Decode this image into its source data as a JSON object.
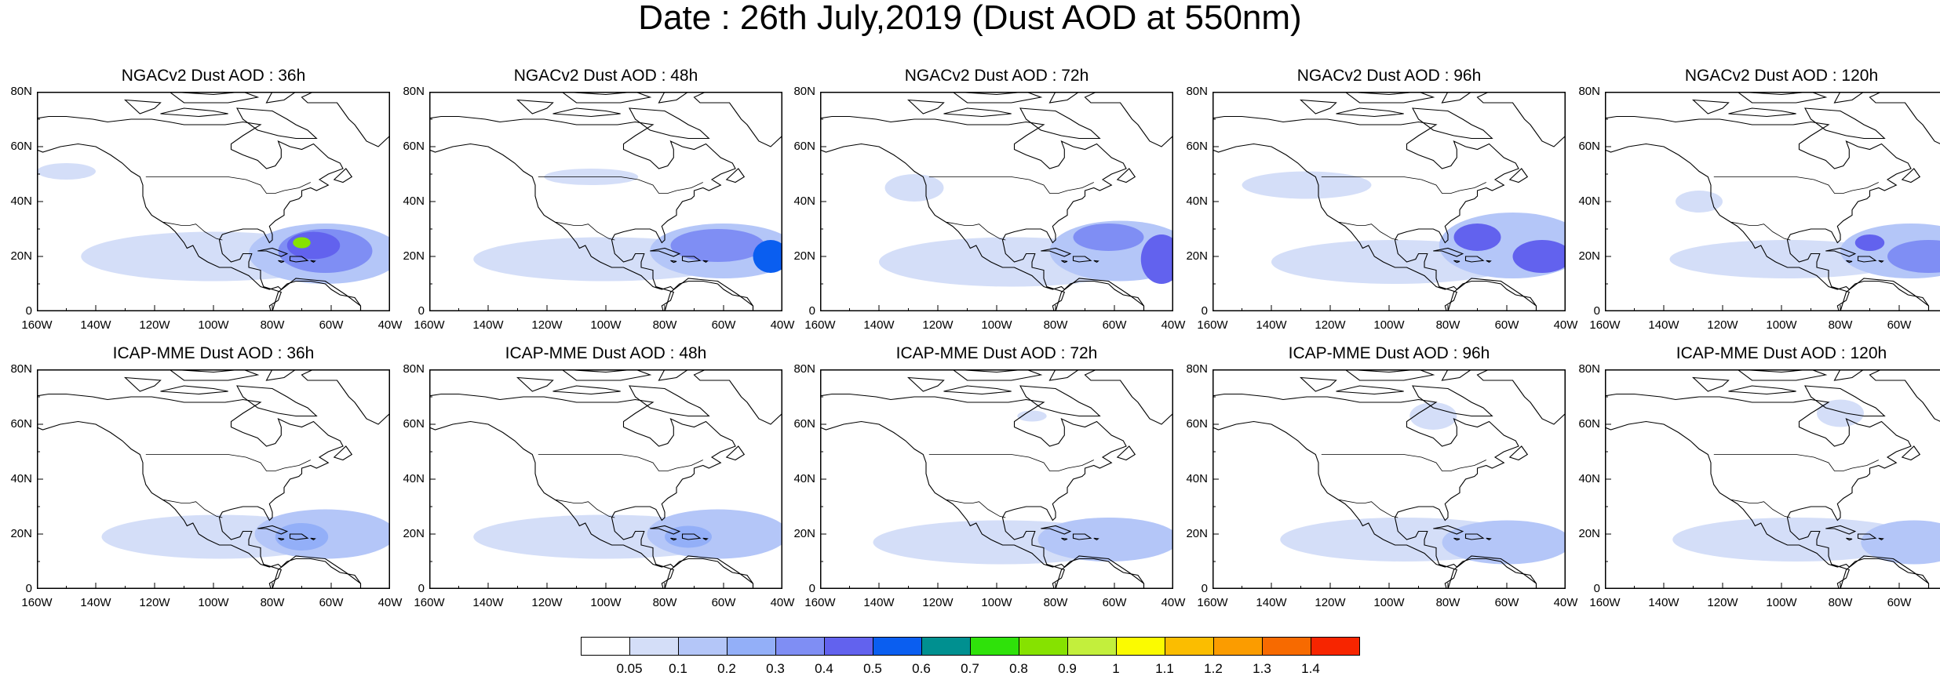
{
  "title": "Date : 26th July,2019 (Dust AOD at 550nm)",
  "colors": {
    "levels": [
      "#ffffff",
      "#d4def8",
      "#b4c6f8",
      "#93aff8",
      "#7f8ef4",
      "#6262ee",
      "#0a5ef0",
      "#009090",
      "#2fe20a",
      "#86e200",
      "#c3ef3c",
      "#fbfb00",
      "#fbbd00",
      "#fb9c00",
      "#f76a00",
      "#f72500"
    ]
  },
  "colorbar": {
    "labels": [
      "0.05",
      "0.1",
      "0.2",
      "0.3",
      "0.4",
      "0.5",
      "0.6",
      "0.7",
      "0.8",
      "0.9",
      "1",
      "1.1",
      "1.2",
      "1.3",
      "1.4"
    ]
  },
  "axes": {
    "lat_labels": [
      "80N",
      "60N",
      "40N",
      "20N",
      "0"
    ],
    "lon_labels": [
      "160W",
      "140W",
      "120W",
      "100W",
      "80W",
      "60W",
      "40W"
    ],
    "lon_range": [
      -160,
      -40
    ],
    "lat_range": [
      0,
      80
    ]
  },
  "panels": [
    {
      "title": "NGACv2 Dust AOD : 36h",
      "plumes": [
        {
          "lon": -100,
          "lat": 20,
          "rx": 45,
          "ry": 9,
          "level": 1
        },
        {
          "lon": -62,
          "lat": 21,
          "rx": 26,
          "ry": 11,
          "level": 2
        },
        {
          "lon": -62,
          "lat": 22,
          "rx": 16,
          "ry": 8,
          "level": 4
        },
        {
          "lon": -66,
          "lat": 24,
          "rx": 9,
          "ry": 5,
          "level": 5
        },
        {
          "lon": -70,
          "lat": 25,
          "rx": 3,
          "ry": 2,
          "level": 9
        },
        {
          "lon": -150,
          "lat": 51,
          "rx": 10,
          "ry": 3,
          "level": 1
        }
      ]
    },
    {
      "title": "NGACv2 Dust AOD : 48h",
      "plumes": [
        {
          "lon": -100,
          "lat": 19,
          "rx": 45,
          "ry": 8,
          "level": 1
        },
        {
          "lon": -60,
          "lat": 22,
          "rx": 25,
          "ry": 10,
          "level": 2
        },
        {
          "lon": -62,
          "lat": 24,
          "rx": 16,
          "ry": 6,
          "level": 4
        },
        {
          "lon": -44,
          "lat": 20,
          "rx": 6,
          "ry": 6,
          "level": 6
        },
        {
          "lon": -105,
          "lat": 49,
          "rx": 16,
          "ry": 3,
          "level": 1
        }
      ]
    },
    {
      "title": "NGACv2 Dust AOD : 72h",
      "plumes": [
        {
          "lon": -95,
          "lat": 18,
          "rx": 45,
          "ry": 9,
          "level": 1
        },
        {
          "lon": -58,
          "lat": 22,
          "rx": 24,
          "ry": 11,
          "level": 2
        },
        {
          "lon": -62,
          "lat": 27,
          "rx": 12,
          "ry": 5,
          "level": 4
        },
        {
          "lon": -44,
          "lat": 19,
          "rx": 7,
          "ry": 9,
          "level": 5
        },
        {
          "lon": -128,
          "lat": 45,
          "rx": 10,
          "ry": 5,
          "level": 1
        }
      ]
    },
    {
      "title": "NGACv2 Dust AOD : 96h",
      "plumes": [
        {
          "lon": -98,
          "lat": 18,
          "rx": 42,
          "ry": 8,
          "level": 1
        },
        {
          "lon": -58,
          "lat": 24,
          "rx": 25,
          "ry": 12,
          "level": 2
        },
        {
          "lon": -70,
          "lat": 27,
          "rx": 8,
          "ry": 5,
          "level": 5
        },
        {
          "lon": -48,
          "lat": 20,
          "rx": 10,
          "ry": 6,
          "level": 5
        },
        {
          "lon": -128,
          "lat": 46,
          "rx": 22,
          "ry": 5,
          "level": 1
        }
      ]
    },
    {
      "title": "NGACv2 Dust AOD : 120h",
      "plumes": [
        {
          "lon": -98,
          "lat": 19,
          "rx": 40,
          "ry": 7,
          "level": 1
        },
        {
          "lon": -56,
          "lat": 22,
          "rx": 24,
          "ry": 10,
          "level": 2
        },
        {
          "lon": -50,
          "lat": 20,
          "rx": 14,
          "ry": 6,
          "level": 4
        },
        {
          "lon": -70,
          "lat": 25,
          "rx": 5,
          "ry": 3,
          "level": 5
        },
        {
          "lon": -128,
          "lat": 40,
          "rx": 8,
          "ry": 4,
          "level": 1
        }
      ]
    },
    {
      "title": "ICAP-MME Dust AOD : 36h",
      "plumes": [
        {
          "lon": -98,
          "lat": 19,
          "rx": 40,
          "ry": 8,
          "level": 1
        },
        {
          "lon": -62,
          "lat": 20,
          "rx": 24,
          "ry": 9,
          "level": 2
        },
        {
          "lon": -70,
          "lat": 19,
          "rx": 9,
          "ry": 5,
          "level": 3
        }
      ]
    },
    {
      "title": "ICAP-MME Dust AOD : 48h",
      "plumes": [
        {
          "lon": -100,
          "lat": 19,
          "rx": 45,
          "ry": 8,
          "level": 1
        },
        {
          "lon": -62,
          "lat": 20,
          "rx": 24,
          "ry": 9,
          "level": 2
        },
        {
          "lon": -72,
          "lat": 19,
          "rx": 8,
          "ry": 4,
          "level": 3
        }
      ]
    },
    {
      "title": "ICAP-MME Dust AOD : 72h",
      "plumes": [
        {
          "lon": -98,
          "lat": 17,
          "rx": 44,
          "ry": 8,
          "level": 1
        },
        {
          "lon": -62,
          "lat": 18,
          "rx": 24,
          "ry": 8,
          "level": 2
        },
        {
          "lon": -88,
          "lat": 63,
          "rx": 5,
          "ry": 2,
          "level": 1
        }
      ]
    },
    {
      "title": "ICAP-MME Dust AOD : 96h",
      "plumes": [
        {
          "lon": -95,
          "lat": 18,
          "rx": 42,
          "ry": 8,
          "level": 1
        },
        {
          "lon": -60,
          "lat": 17,
          "rx": 22,
          "ry": 8,
          "level": 2
        },
        {
          "lon": -85,
          "lat": 63,
          "rx": 8,
          "ry": 5,
          "level": 1
        }
      ]
    },
    {
      "title": "ICAP-MME Dust AOD : 120h",
      "plumes": [
        {
          "lon": -95,
          "lat": 18,
          "rx": 42,
          "ry": 8,
          "level": 1
        },
        {
          "lon": -55,
          "lat": 17,
          "rx": 18,
          "ry": 8,
          "level": 2
        },
        {
          "lon": -80,
          "lat": 64,
          "rx": 8,
          "ry": 5,
          "level": 1
        }
      ]
    }
  ]
}
